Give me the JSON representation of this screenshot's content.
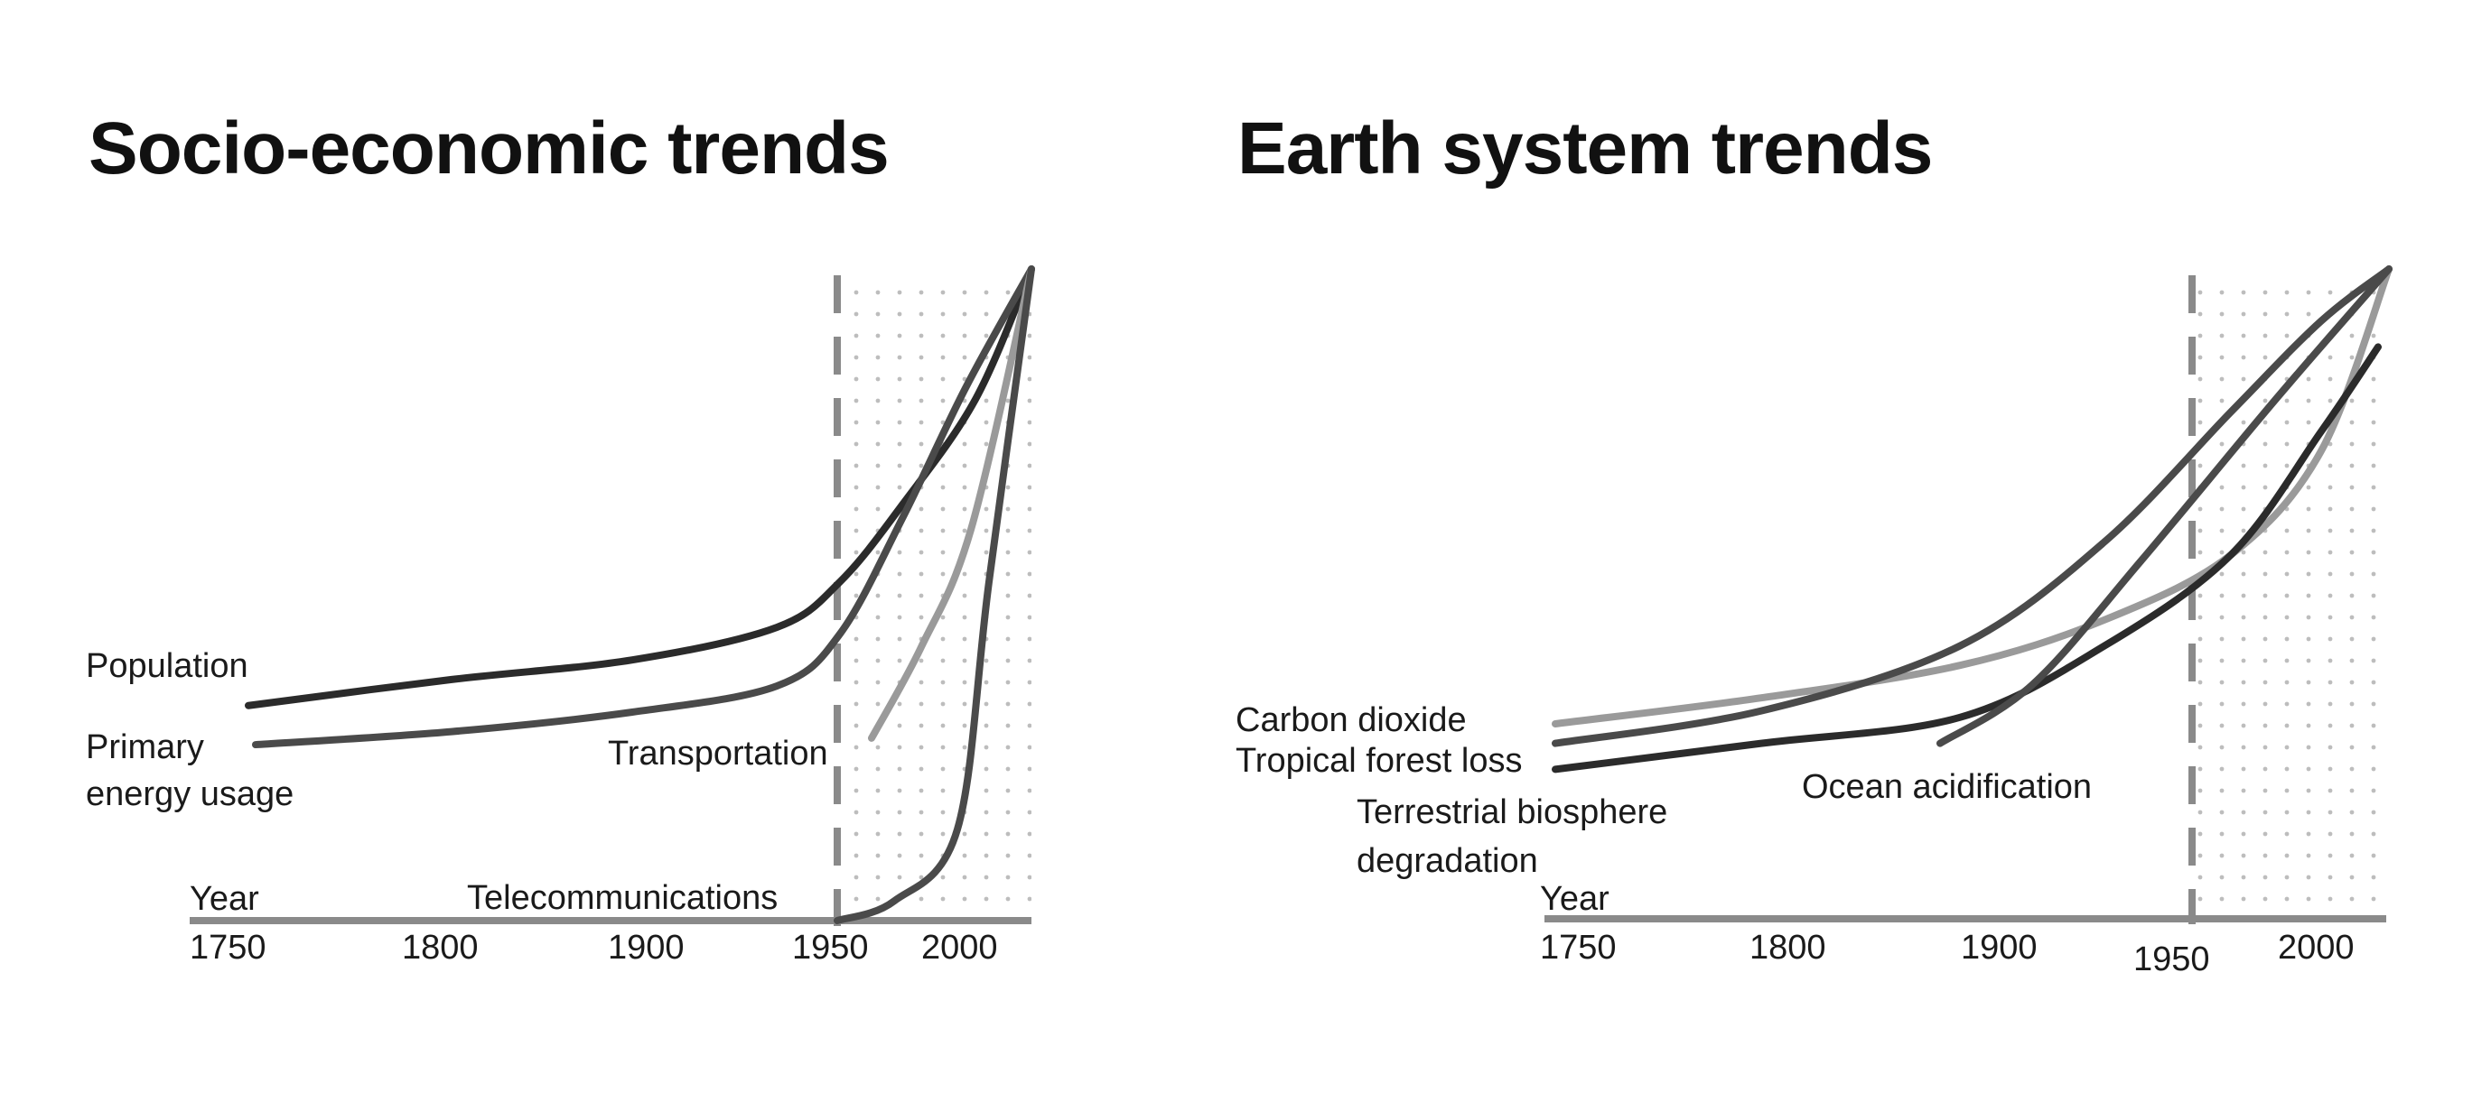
{
  "colors": {
    "background": "#ffffff",
    "text": "#1a1a1a",
    "axis": "#8a8a8a",
    "divider": "#8a8a8a",
    "dots": "#bdbdbd",
    "curve_dark": "#2b2b2b",
    "curve_mid": "#4a4a4a",
    "curve_light": "#9a9a9a"
  },
  "chart_data": [
    {
      "type": "line",
      "title": "Socio-economic trends",
      "xlabel": "Year",
      "ylabel": "",
      "x_ticks": [
        "1750",
        "1800",
        "1900",
        "1950",
        "2000"
      ],
      "divider_year": "1950",
      "shaded_region": "1950 to present",
      "grid": false,
      "series": [
        {
          "name": "Population",
          "label_lines": [
            "Population"
          ],
          "color": "#2b2b2b",
          "values_relative": [
            0.33,
            0.37,
            0.4,
            0.45,
            0.52,
            0.64,
            0.8,
            1.0
          ]
        },
        {
          "name": "Primary energy usage",
          "label_lines": [
            "Primary",
            "energy usage"
          ],
          "color": "#4a4a4a",
          "values_relative": [
            0.27,
            0.29,
            0.32,
            0.36,
            0.44,
            0.62,
            0.82,
            1.0
          ]
        },
        {
          "name": "Transportation",
          "label_lines": [
            "Transportation"
          ],
          "color": "#9a9a9a",
          "values_relative": [
            0.28,
            0.42,
            0.6,
            1.0
          ]
        },
        {
          "name": "Telecommunications",
          "label_lines": [
            "Telecommunications"
          ],
          "color": "#4a4a4a",
          "values_relative": [
            0.0,
            0.03,
            0.14,
            0.52,
            1.0
          ]
        }
      ]
    },
    {
      "type": "line",
      "title": "Earth system trends",
      "xlabel": "Year",
      "ylabel": "",
      "x_ticks": [
        "1750",
        "1800",
        "1900",
        "1950",
        "2000"
      ],
      "divider_year": "1950",
      "shaded_region": "1950 to present",
      "grid": false,
      "series": [
        {
          "name": "Carbon dioxide",
          "label_lines": [
            "Carbon dioxide"
          ],
          "color": "#9a9a9a",
          "values_relative": [
            0.3,
            0.34,
            0.39,
            0.46,
            0.56,
            0.72,
            1.0
          ]
        },
        {
          "name": "Tropical forest loss",
          "label_lines": [
            "Tropical forest loss"
          ],
          "color": "#4a4a4a",
          "values_relative": [
            0.27,
            0.32,
            0.42,
            0.58,
            0.78,
            0.92,
            1.0
          ]
        },
        {
          "name": "Terrestrial biosphere degradation",
          "label_lines": [
            "Terrestrial biosphere",
            "degradation"
          ],
          "color": "#2b2b2b",
          "values_relative": [
            0.23,
            0.27,
            0.31,
            0.42,
            0.56,
            0.75,
            0.88
          ]
        },
        {
          "name": "Ocean acidification",
          "label_lines": [
            "Ocean acidification"
          ],
          "color": "#4a4a4a",
          "values_relative": [
            0.27,
            0.36,
            0.55,
            0.8,
            1.0
          ]
        }
      ]
    }
  ]
}
